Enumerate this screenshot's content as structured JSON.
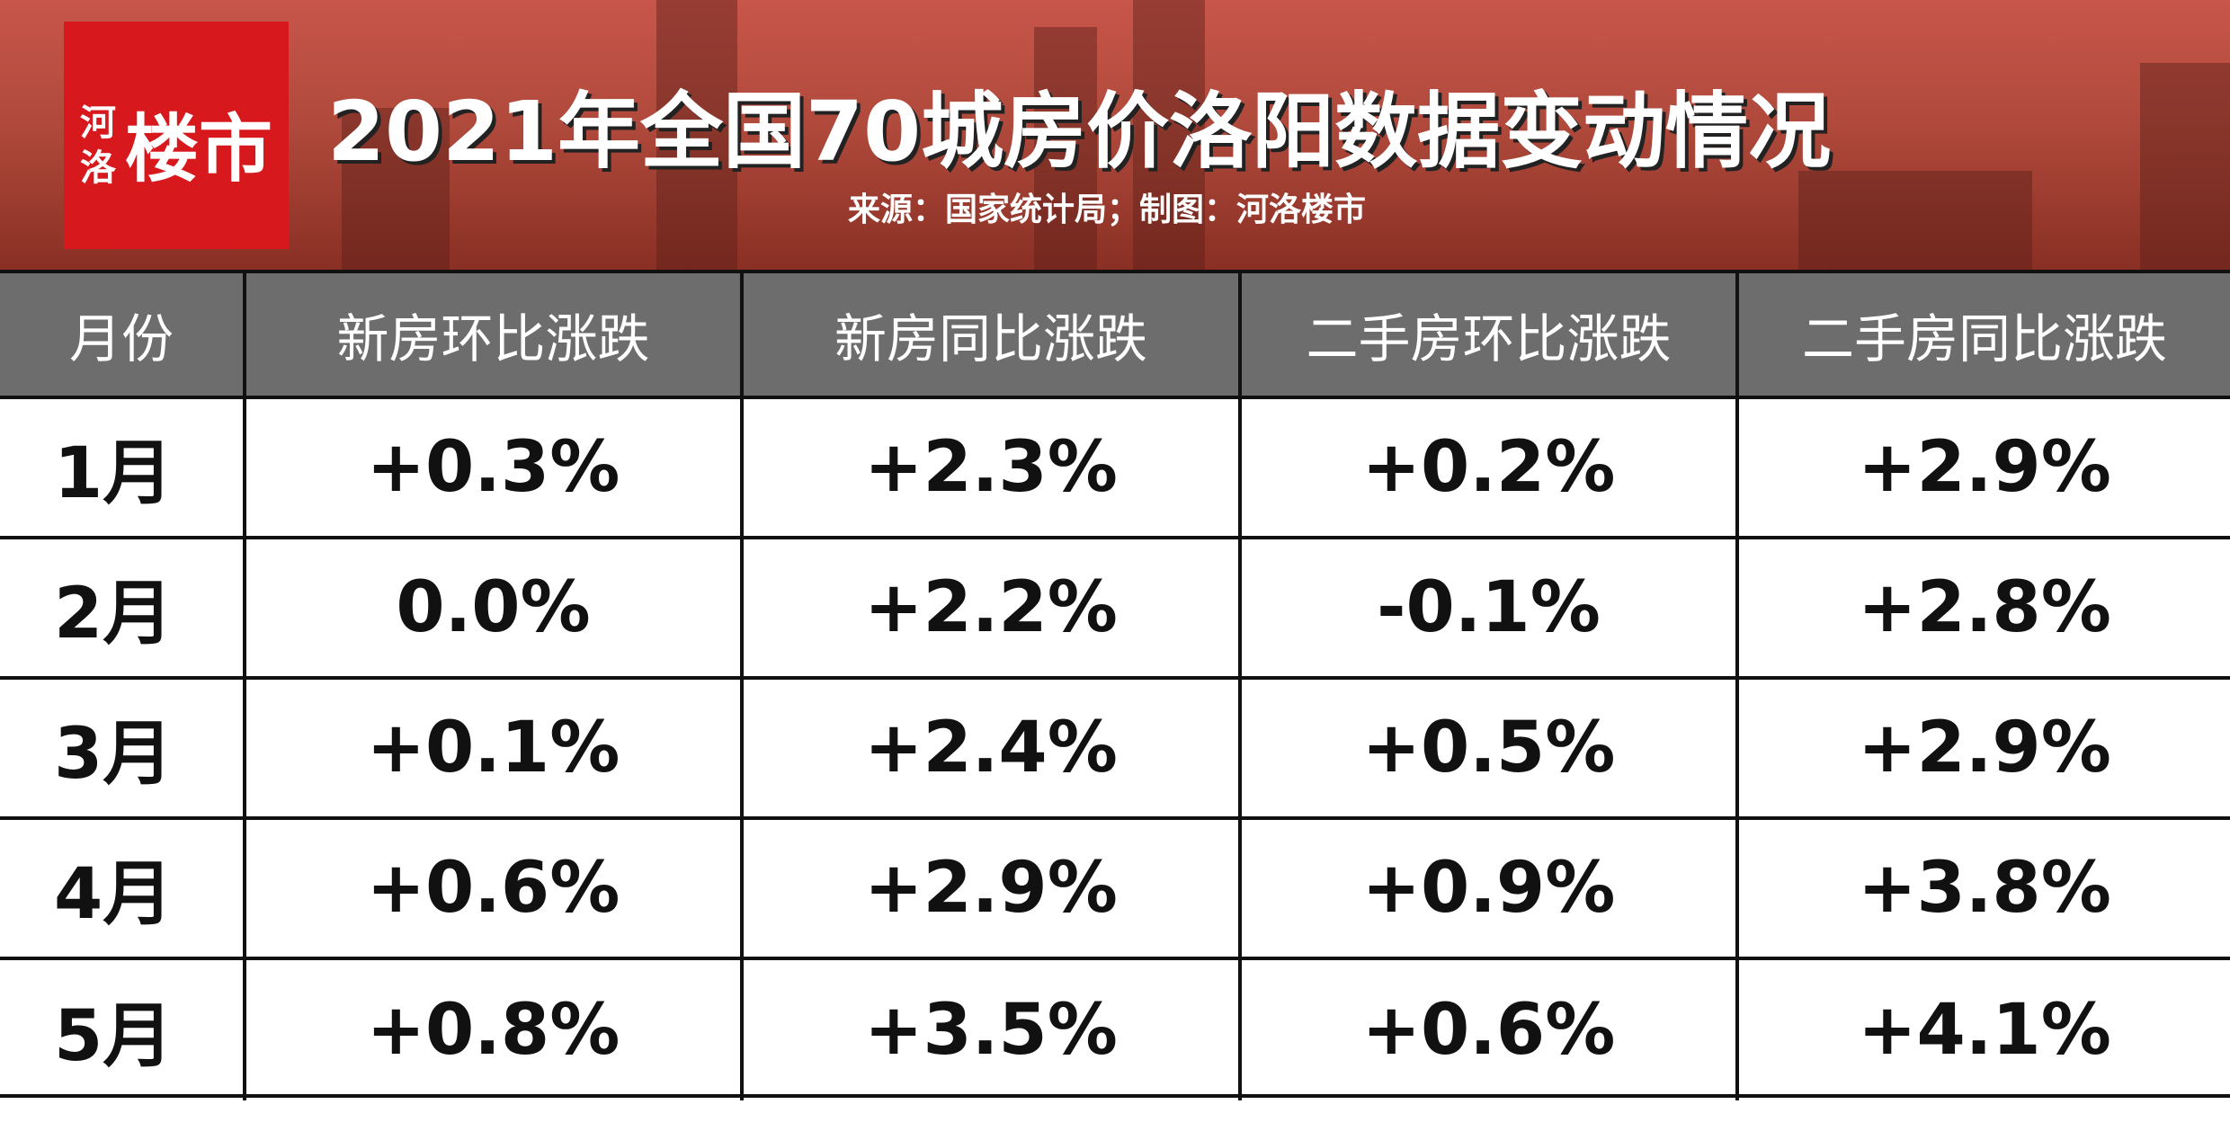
{
  "header": {
    "logo": {
      "small_top": "河",
      "small_bottom": "洛",
      "main": "楼市"
    },
    "title": "2021年全国70城房价洛阳数据变动情况",
    "subtitle": "来源：国家统计局；制图：河洛楼市"
  },
  "table": {
    "columns": [
      "月份",
      "新房环比涨跌",
      "新房同比涨跌",
      "二手房环比涨跌",
      "二手房同比涨跌"
    ],
    "rows": [
      [
        "1月",
        "+0.3%",
        "+2.3%",
        "+0.2%",
        "+2.9%"
      ],
      [
        "2月",
        "0.0%",
        "+2.2%",
        "-0.1%",
        "+2.8%"
      ],
      [
        "3月",
        "+0.1%",
        "+2.4%",
        "+0.5%",
        "+2.9%"
      ],
      [
        "4月",
        "+0.6%",
        "+2.9%",
        "+0.9%",
        "+3.8%"
      ],
      [
        "5月",
        "+0.8%",
        "+3.5%",
        "+0.6%",
        "+4.1%"
      ]
    ]
  }
}
